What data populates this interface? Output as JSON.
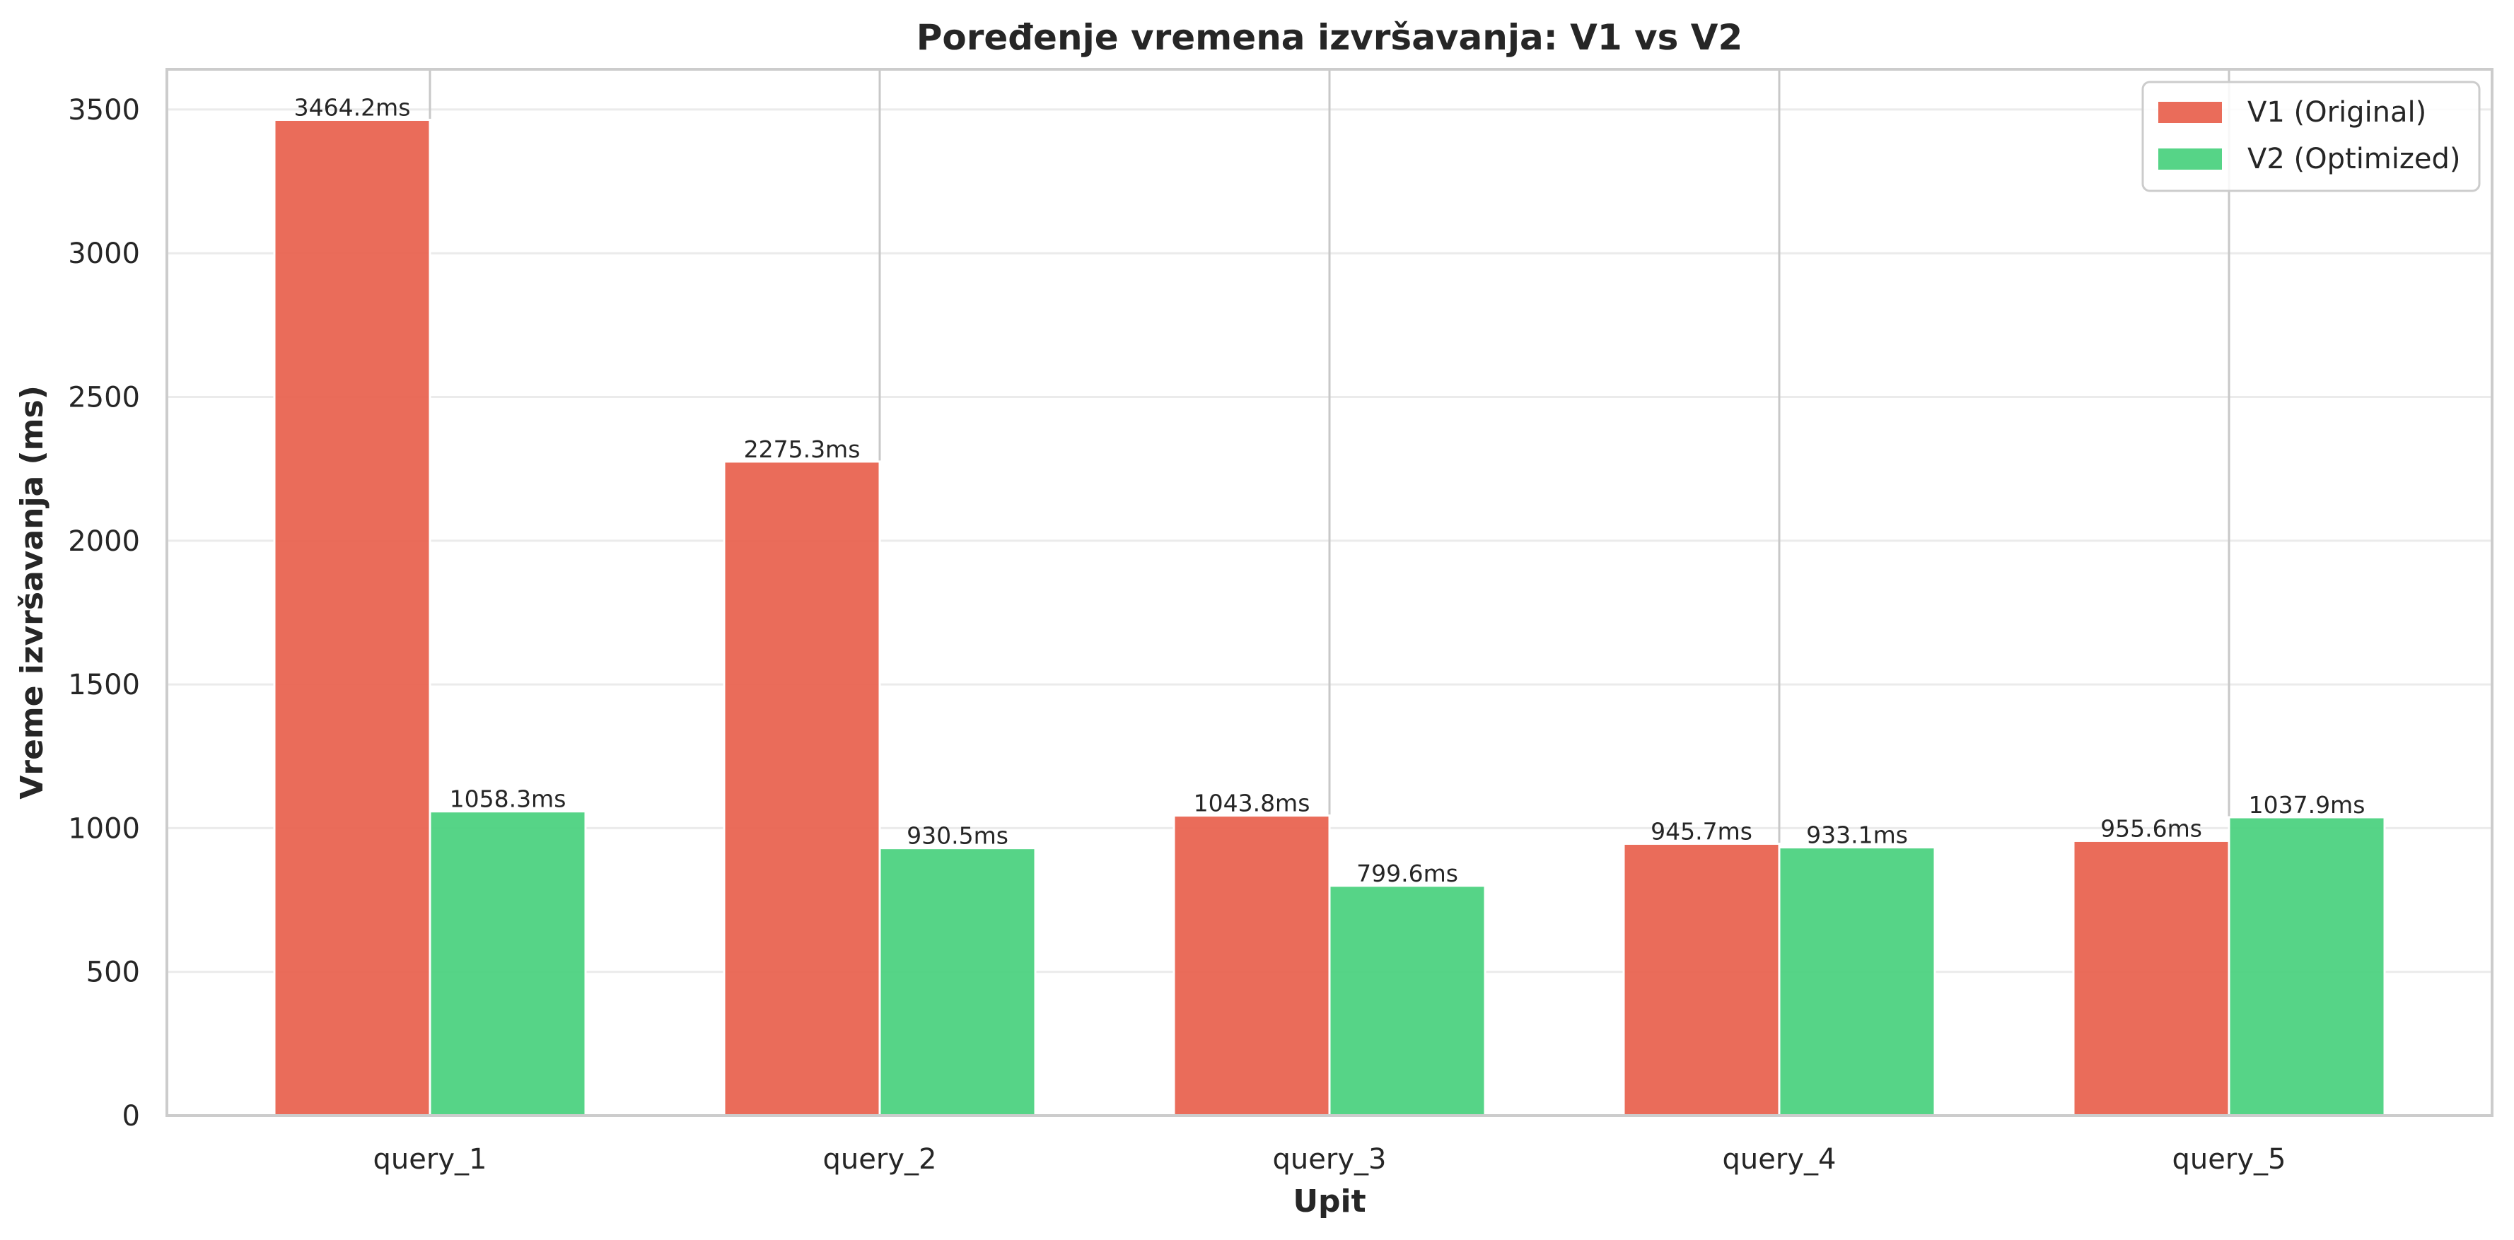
{
  "chart_data": {
    "type": "bar",
    "title": "Poređenje vremena izvršavanja: V1 vs V2",
    "xlabel": "Upit",
    "ylabel": "Vreme izvršavanja (ms)",
    "categories": [
      "query_1",
      "query_2",
      "query_3",
      "query_4",
      "query_5"
    ],
    "series": [
      {
        "name": "V1 (Original)",
        "color": "#e8604c",
        "values": [
          3464.2,
          2275.3,
          1043.8,
          945.7,
          955.6
        ],
        "labels": [
          "3464.2ms",
          "2275.3ms",
          "1043.8ms",
          "945.7ms",
          "955.6ms"
        ]
      },
      {
        "name": "V2 (Optimized)",
        "color": "#48d07d",
        "values": [
          1058.3,
          930.5,
          799.6,
          933.1,
          1037.9
        ],
        "labels": [
          "1058.3ms",
          "930.5ms",
          "799.6ms",
          "933.1ms",
          "1037.9ms"
        ]
      }
    ],
    "ylim": [
      0,
      3640
    ],
    "yticks": [
      0,
      500,
      1000,
      1500,
      2000,
      2500,
      3000,
      3500
    ],
    "ytick_labels": [
      "0",
      "500",
      "1000",
      "1500",
      "2000",
      "2500",
      "3000",
      "3500"
    ],
    "grid": "horizontal",
    "legend_position": "top-right"
  }
}
